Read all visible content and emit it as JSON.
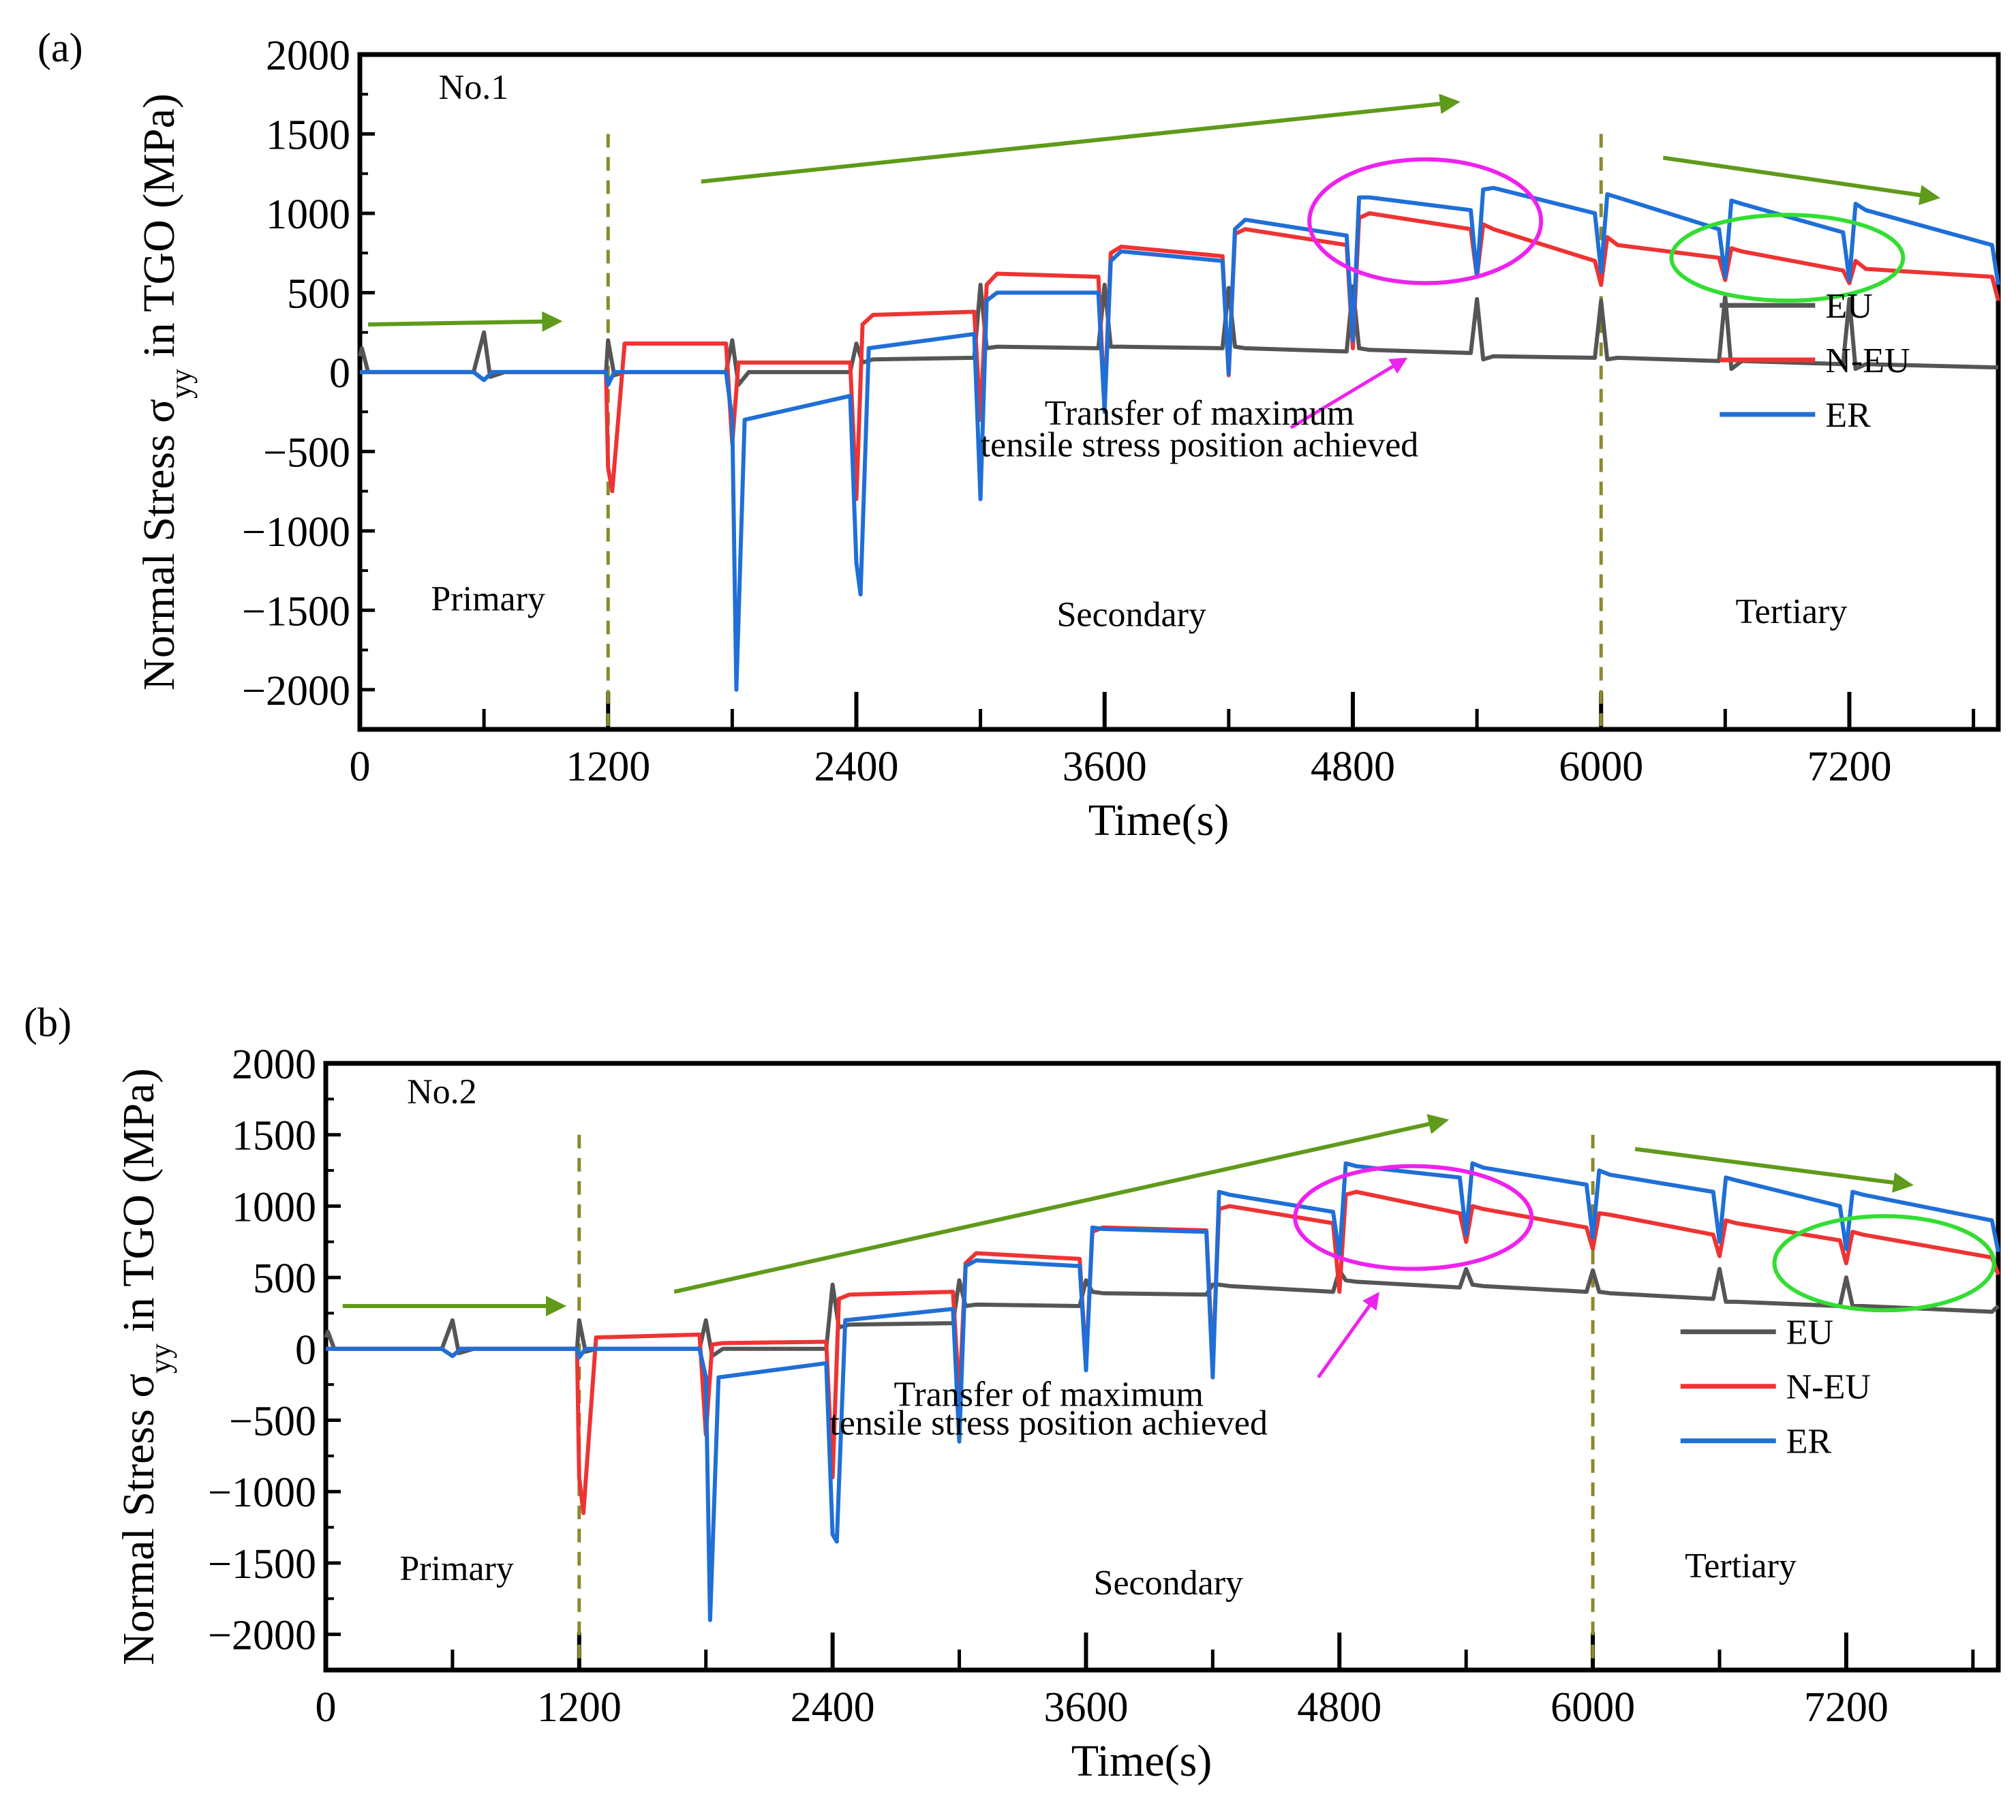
{
  "chart_data": [
    {
      "type": "line",
      "panel_label": "(a)",
      "sample_label": "No.1",
      "xlabel": "Time(s)",
      "ylabel": "Normal Stress σyy in TGO (MPa)",
      "ylabel_main": "Normal Stress σ",
      "ylabel_sub": "yy",
      "ylabel_rest": " in TGO (MPa)",
      "xlim": [
        0,
        7920
      ],
      "ylim": [
        -2250,
        2000
      ],
      "xticks": [
        "0",
        "1200",
        "2400",
        "3600",
        "4800",
        "6000",
        "7200"
      ],
      "yticks": [
        "2000",
        "1500",
        "1000",
        "500",
        "0",
        "−500",
        "−1000",
        "−1500",
        "−2000"
      ],
      "stage_boundaries": [
        1200,
        6000
      ],
      "stages": [
        "Primary",
        "Secondary",
        "Tertiary"
      ],
      "annotation": [
        "Transfer of maximum",
        "tensile stress position achieved"
      ],
      "legend": [
        "EU",
        "N-EU",
        "ER"
      ],
      "colors": {
        "EU": "#555555",
        "N-EU": "#ee3333",
        "ER": "#1f6fd6",
        "arrow": "#5f9a1a",
        "stage_line": "#8a8a2a",
        "ellipse1": "#ee22ee",
        "ellipse2": "#33dd33",
        "pointer": "#ee22ee"
      },
      "series": [
        {
          "name": "EU",
          "x": [
            0,
            10,
            40,
            550,
            600,
            630,
            700,
            1190,
            1200,
            1230,
            1280,
            1770,
            1800,
            1830,
            1880,
            2370,
            2400,
            2430,
            2480,
            2970,
            3000,
            3030,
            3080,
            3570,
            3600,
            3630,
            3680,
            4170,
            4200,
            4230,
            4280,
            4770,
            4800,
            4830,
            4880,
            5370,
            5400,
            5430,
            5480,
            5970,
            6000,
            6030,
            6080,
            6570,
            6600,
            6630,
            6680,
            7170,
            7200,
            7230,
            7280,
            7890,
            7920
          ],
          "y": [
            100,
            150,
            0,
            0,
            250,
            -30,
            0,
            0,
            200,
            -20,
            0,
            0,
            200,
            -80,
            0,
            0,
            180,
            60,
            80,
            90,
            550,
            150,
            160,
            150,
            550,
            160,
            160,
            150,
            530,
            160,
            150,
            130,
            540,
            150,
            140,
            120,
            460,
            80,
            100,
            90,
            450,
            80,
            90,
            70,
            480,
            20,
            70,
            50,
            460,
            20,
            50,
            30,
            30
          ]
        },
        {
          "name": "N-EU",
          "x": [
            0,
            40,
            550,
            600,
            640,
            1190,
            1200,
            1220,
            1280,
            1770,
            1800,
            1830,
            1880,
            2370,
            2400,
            2430,
            2480,
            2970,
            3000,
            3030,
            3080,
            3570,
            3600,
            3630,
            3680,
            4170,
            4200,
            4230,
            4280,
            4770,
            4800,
            4830,
            4880,
            5370,
            5400,
            5430,
            5480,
            5970,
            6000,
            6030,
            6080,
            6570,
            6600,
            6630,
            6680,
            7170,
            7200,
            7230,
            7280,
            7890,
            7920
          ],
          "y": [
            0,
            0,
            0,
            -50,
            0,
            0,
            -600,
            -750,
            180,
            180,
            -450,
            60,
            60,
            60,
            -800,
            300,
            360,
            380,
            -300,
            550,
            620,
            600,
            -200,
            750,
            790,
            730,
            -20,
            870,
            900,
            800,
            150,
            970,
            1000,
            900,
            600,
            930,
            900,
            700,
            550,
            850,
            800,
            720,
            580,
            780,
            760,
            640,
            560,
            700,
            650,
            600,
            450
          ]
        },
        {
          "name": "ER",
          "x": [
            0,
            40,
            550,
            600,
            640,
            1190,
            1200,
            1230,
            1280,
            1770,
            1800,
            1820,
            1860,
            2370,
            2400,
            2420,
            2460,
            2970,
            3000,
            3030,
            3080,
            3570,
            3600,
            3630,
            3680,
            4170,
            4200,
            4230,
            4280,
            4770,
            4800,
            4830,
            4880,
            5370,
            5400,
            5430,
            5480,
            5970,
            6000,
            6030,
            6080,
            6570,
            6600,
            6630,
            6680,
            7170,
            7200,
            7230,
            7280,
            7890,
            7920
          ],
          "y": [
            0,
            0,
            0,
            -50,
            0,
            0,
            -80,
            0,
            0,
            0,
            -300,
            -2000,
            -300,
            -150,
            -1200,
            -1400,
            150,
            240,
            -800,
            450,
            500,
            500,
            -250,
            700,
            760,
            700,
            -10,
            900,
            960,
            860,
            200,
            1100,
            1100,
            1020,
            600,
            1150,
            1160,
            1000,
            630,
            1120,
            1100,
            900,
            600,
            1080,
            1060,
            880,
            580,
            1060,
            1020,
            800,
            550
          ]
        }
      ]
    },
    {
      "type": "line",
      "panel_label": "(b)",
      "sample_label": "No.2",
      "xlabel": "Time(s)",
      "ylabel": "Normal Stress σyy in TGO (MPa)",
      "ylabel_main": "Normal Stress σ",
      "ylabel_sub": "yy",
      "ylabel_rest": " in TGO (MPa)",
      "xlim": [
        0,
        7920
      ],
      "ylim": [
        -2250,
        2000
      ],
      "xticks": [
        "0",
        "1200",
        "2400",
        "3600",
        "4800",
        "6000",
        "7200"
      ],
      "yticks": [
        "2000",
        "1500",
        "1000",
        "500",
        "0",
        "−500",
        "−1000",
        "−1500",
        "−2000"
      ],
      "stage_boundaries": [
        1200,
        6000
      ],
      "stages": [
        "Primary",
        "Secondary",
        "Tertiary"
      ],
      "annotation": [
        "Transfer of maximum",
        "tensile stress position achieved"
      ],
      "legend": [
        "EU",
        "N-EU",
        "ER"
      ],
      "colors": {
        "EU": "#555555",
        "N-EU": "#ee3333",
        "ER": "#1f6fd6",
        "arrow": "#5f9a1a",
        "stage_line": "#8a8a2a",
        "ellipse1": "#ee22ee",
        "ellipse2": "#33dd33",
        "pointer": "#ee22ee"
      },
      "series": [
        {
          "name": "EU",
          "x": [
            0,
            10,
            40,
            550,
            600,
            630,
            700,
            1190,
            1200,
            1230,
            1280,
            1770,
            1800,
            1830,
            1880,
            2370,
            2400,
            2430,
            2480,
            2970,
            3000,
            3030,
            3080,
            3570,
            3600,
            3630,
            3680,
            4170,
            4200,
            4230,
            4280,
            4770,
            4800,
            4830,
            4880,
            5370,
            5400,
            5430,
            5480,
            5970,
            6000,
            6030,
            6080,
            6570,
            6600,
            6630,
            6680,
            7170,
            7200,
            7230,
            7280,
            7890,
            7920
          ],
          "y": [
            80,
            120,
            0,
            0,
            200,
            -30,
            0,
            0,
            200,
            -20,
            0,
            0,
            200,
            -50,
            0,
            0,
            450,
            150,
            170,
            180,
            480,
            300,
            310,
            300,
            480,
            400,
            390,
            380,
            450,
            450,
            440,
            400,
            550,
            480,
            470,
            430,
            560,
            450,
            440,
            400,
            550,
            400,
            390,
            350,
            560,
            330,
            330,
            300,
            500,
            300,
            300,
            260,
            300
          ]
        },
        {
          "name": "N-EU",
          "x": [
            0,
            40,
            550,
            600,
            640,
            1190,
            1200,
            1220,
            1280,
            1770,
            1800,
            1830,
            1880,
            2370,
            2400,
            2430,
            2480,
            2970,
            3000,
            3030,
            3080,
            3570,
            3600,
            3630,
            3680,
            4170,
            4200,
            4230,
            4280,
            4770,
            4800,
            4830,
            4880,
            5370,
            5400,
            5430,
            5480,
            5970,
            6000,
            6030,
            6080,
            6570,
            6600,
            6630,
            6680,
            7170,
            7200,
            7230,
            7280,
            7890,
            7920
          ],
          "y": [
            0,
            0,
            0,
            -50,
            0,
            0,
            -900,
            -1150,
            80,
            100,
            -600,
            30,
            40,
            50,
            -900,
            350,
            380,
            400,
            -350,
            600,
            670,
            630,
            -100,
            820,
            850,
            830,
            -100,
            980,
            1000,
            880,
            400,
            1080,
            1100,
            950,
            750,
            1000,
            980,
            850,
            700,
            950,
            940,
            800,
            650,
            900,
            880,
            760,
            600,
            820,
            800,
            640,
            520
          ]
        },
        {
          "name": "ER",
          "x": [
            0,
            40,
            550,
            600,
            640,
            1190,
            1200,
            1230,
            1280,
            1770,
            1800,
            1820,
            1860,
            2370,
            2400,
            2420,
            2460,
            2970,
            3000,
            3030,
            3080,
            3570,
            3600,
            3630,
            3680,
            4170,
            4200,
            4230,
            4280,
            4770,
            4800,
            4830,
            4880,
            5370,
            5400,
            5430,
            5480,
            5970,
            6000,
            6030,
            6080,
            6570,
            6600,
            6630,
            6680,
            7170,
            7200,
            7230,
            7280,
            7890,
            7920
          ],
          "y": [
            0,
            0,
            0,
            -50,
            0,
            0,
            -60,
            0,
            0,
            0,
            -200,
            -1900,
            -200,
            -100,
            -1300,
            -1350,
            200,
            280,
            -650,
            580,
            620,
            580,
            -150,
            850,
            840,
            820,
            -200,
            1100,
            1080,
            960,
            650,
            1300,
            1280,
            1200,
            800,
            1300,
            1270,
            1150,
            780,
            1250,
            1220,
            1100,
            750,
            1200,
            1180,
            1000,
            700,
            1100,
            1080,
            900,
            680
          ]
        }
      ]
    }
  ]
}
